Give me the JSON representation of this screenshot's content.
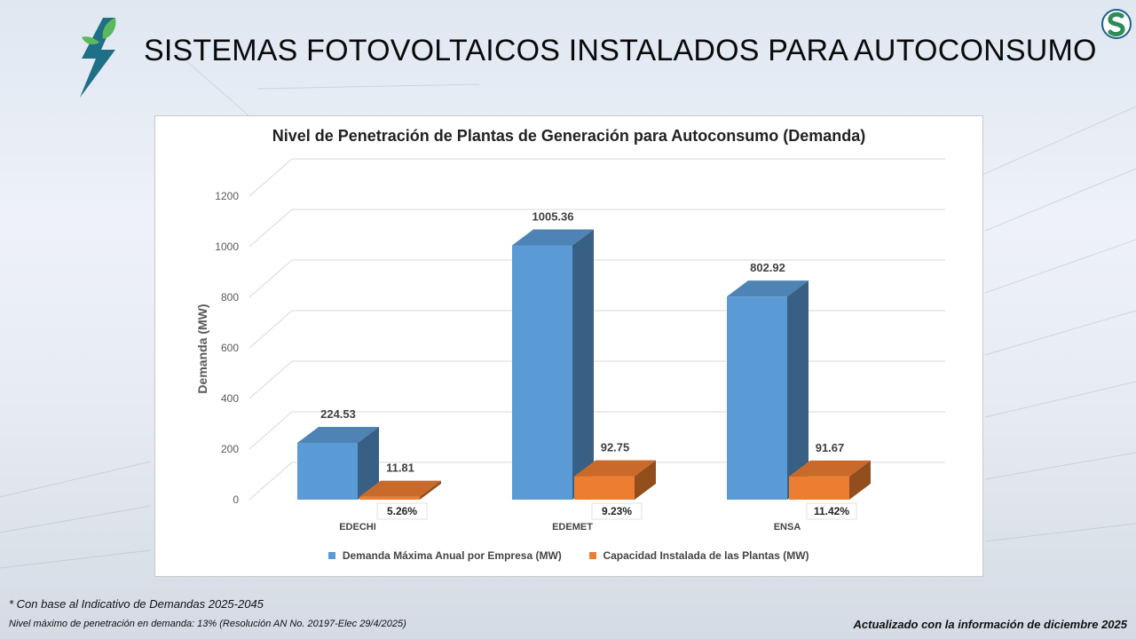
{
  "page": {
    "title": "SISTEMAS FOTOVOLTAICOS INSTALADOS PARA AUTOCONSUMO",
    "footnote_1": "* Con base al  Indicativo de Demandas 2025-2045",
    "footnote_2": "Nivel máximo de penetración en demanda: 13% (Resolución AN No. 20197-Elec 29/4/2025)",
    "updated_text": "Actualizado con la información de diciembre 2025"
  },
  "colors": {
    "demand": "#5b9bd5",
    "capacity": "#ed7d31",
    "logo_teal": "#1f6f86",
    "logo_green": "#5cb85c"
  },
  "icons": {
    "logo": "lightning-leaf-icon",
    "brand": "s-brand-icon"
  },
  "chart_data": {
    "type": "bar",
    "title": "Nivel de Penetración de Plantas de Generación para Autoconsumo (Demanda)",
    "ylabel": "Demanda (MW)",
    "xlabel": "",
    "ylim": [
      0,
      1200
    ],
    "yticks": [
      0,
      200,
      400,
      600,
      800,
      1000,
      1200
    ],
    "grid": true,
    "categories": [
      "EDECHI",
      "EDEMET",
      "ENSA"
    ],
    "series": [
      {
        "name": "Demanda Máxima Anual por Empresa (MW)",
        "values": [
          224.53,
          1005.36,
          802.92
        ],
        "labels": [
          "224.53",
          "1005.36",
          "802.92"
        ]
      },
      {
        "name": "Capacidad Instalada de las Plantas (MW)",
        "values": [
          11.81,
          92.75,
          91.67
        ],
        "labels": [
          "11.81",
          "92.75",
          "91.67"
        ]
      }
    ],
    "penetration_labels": [
      "5.26%",
      "9.23%",
      "11.42%"
    ],
    "legend_position": "bottom"
  }
}
